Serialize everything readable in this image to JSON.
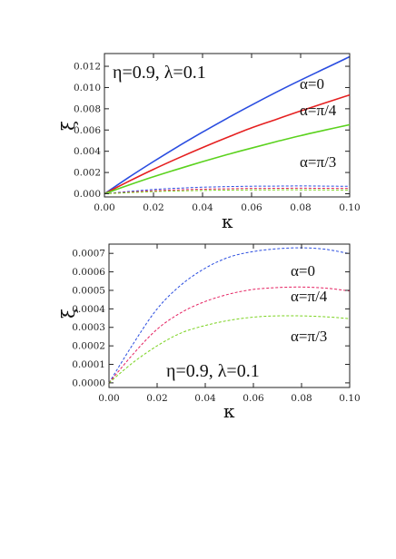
{
  "chart_data": [
    {
      "type": "line",
      "xlabel": "κ",
      "ylabel": "ξ",
      "parameters": "η=0.9, λ=0.1",
      "xlim": [
        0,
        0.1
      ],
      "ylim": [
        -0.0003,
        0.0132
      ],
      "xticks": [
        "0.00",
        "0.02",
        "0.04",
        "0.06",
        "0.08",
        "0.10"
      ],
      "yticks": [
        "0.000",
        "0.002",
        "0.004",
        "0.006",
        "0.008",
        "0.010",
        "0.012"
      ],
      "annotations": [
        "α=0",
        "α=π/4",
        "α=π/3"
      ],
      "series": [
        {
          "color": "#2a4de0",
          "style": "solid",
          "x": [
            0,
            0.01,
            0.02,
            0.03,
            0.04,
            0.05,
            0.06,
            0.07,
            0.08,
            0.09,
            0.1
          ],
          "y": [
            0,
            0.00155,
            0.00303,
            0.00445,
            0.0058,
            0.0071,
            0.00835,
            0.00955,
            0.0107,
            0.0118,
            0.0129
          ]
        },
        {
          "color": "#e52020",
          "style": "solid",
          "x": [
            0,
            0.01,
            0.02,
            0.03,
            0.04,
            0.05,
            0.06,
            0.07,
            0.08,
            0.09,
            0.1
          ],
          "y": [
            0,
            0.00118,
            0.0023,
            0.00335,
            0.00435,
            0.0053,
            0.0062,
            0.007,
            0.0078,
            0.00855,
            0.0093
          ]
        },
        {
          "color": "#5bd21e",
          "style": "solid",
          "x": [
            0,
            0.01,
            0.02,
            0.03,
            0.04,
            0.05,
            0.06,
            0.07,
            0.08,
            0.09,
            0.1
          ],
          "y": [
            0,
            0.00082,
            0.0016,
            0.00232,
            0.00302,
            0.00368,
            0.0043,
            0.0049,
            0.00547,
            0.006,
            0.0065
          ]
        },
        {
          "color": "#2a4de0",
          "style": "dashed",
          "x": [
            0,
            0.01,
            0.02,
            0.03,
            0.04,
            0.05,
            0.06,
            0.07,
            0.08,
            0.09,
            0.1
          ],
          "y": [
            0,
            0.00021,
            0.0004,
            0.00052,
            0.00061,
            0.00067,
            0.00071,
            0.00072,
            0.00073,
            0.00072,
            0.0007
          ]
        },
        {
          "color": "#e52060",
          "style": "dashed",
          "x": [
            0,
            0.01,
            0.02,
            0.03,
            0.04,
            0.05,
            0.06,
            0.07,
            0.08,
            0.09,
            0.1
          ],
          "y": [
            0,
            0.00015,
            0.00028,
            0.00037,
            0.00043,
            0.00047,
            0.0005,
            0.00051,
            0.00052,
            0.00051,
            0.0005
          ]
        },
        {
          "color": "#7ad21e",
          "style": "dashed",
          "x": [
            0,
            0.01,
            0.02,
            0.03,
            0.04,
            0.05,
            0.06,
            0.07,
            0.08,
            0.09,
            0.1
          ],
          "y": [
            0,
            0.0001,
            0.0002,
            0.00026,
            0.00031,
            0.00034,
            0.00036,
            0.00037,
            0.00037,
            0.00036,
            0.00035
          ]
        }
      ]
    },
    {
      "type": "line",
      "xlabel": "κ",
      "ylabel": "ξ",
      "parameters": "η=0.9, λ=0.1",
      "xlim": [
        0,
        0.1
      ],
      "ylim": [
        -2.5e-05,
        0.00075
      ],
      "xticks": [
        "0.00",
        "0.02",
        "0.04",
        "0.06",
        "0.08",
        "0.10"
      ],
      "yticks": [
        "0.0000",
        "0.0001",
        "0.0002",
        "0.0003",
        "0.0004",
        "0.0005",
        "0.0006",
        "0.0007"
      ],
      "annotations": [
        "α=0",
        "α=π/4",
        "α=π/3"
      ],
      "series": [
        {
          "color": "#2a4de0",
          "style": "dashed",
          "x": [
            0,
            0.01,
            0.02,
            0.03,
            0.04,
            0.05,
            0.06,
            0.07,
            0.08,
            0.09,
            0.1
          ],
          "y": [
            0,
            0.00021,
            0.0004,
            0.00053,
            0.00062,
            0.00068,
            0.00071,
            0.000725,
            0.00073,
            0.000722,
            0.000698
          ]
        },
        {
          "color": "#e52060",
          "style": "dashed",
          "x": [
            0,
            0.01,
            0.02,
            0.03,
            0.04,
            0.05,
            0.06,
            0.07,
            0.08,
            0.09,
            0.1
          ],
          "y": [
            0,
            0.000155,
            0.00029,
            0.00038,
            0.00044,
            0.00048,
            0.000505,
            0.000515,
            0.000518,
            0.000512,
            0.000497
          ]
        },
        {
          "color": "#7ad21e",
          "style": "dashed",
          "x": [
            0,
            0.01,
            0.02,
            0.03,
            0.04,
            0.05,
            0.06,
            0.07,
            0.08,
            0.09,
            0.1
          ],
          "y": [
            0,
            0.00011,
            0.0002,
            0.00027,
            0.00031,
            0.000338,
            0.000355,
            0.000362,
            0.000362,
            0.000357,
            0.000347
          ]
        }
      ]
    }
  ]
}
